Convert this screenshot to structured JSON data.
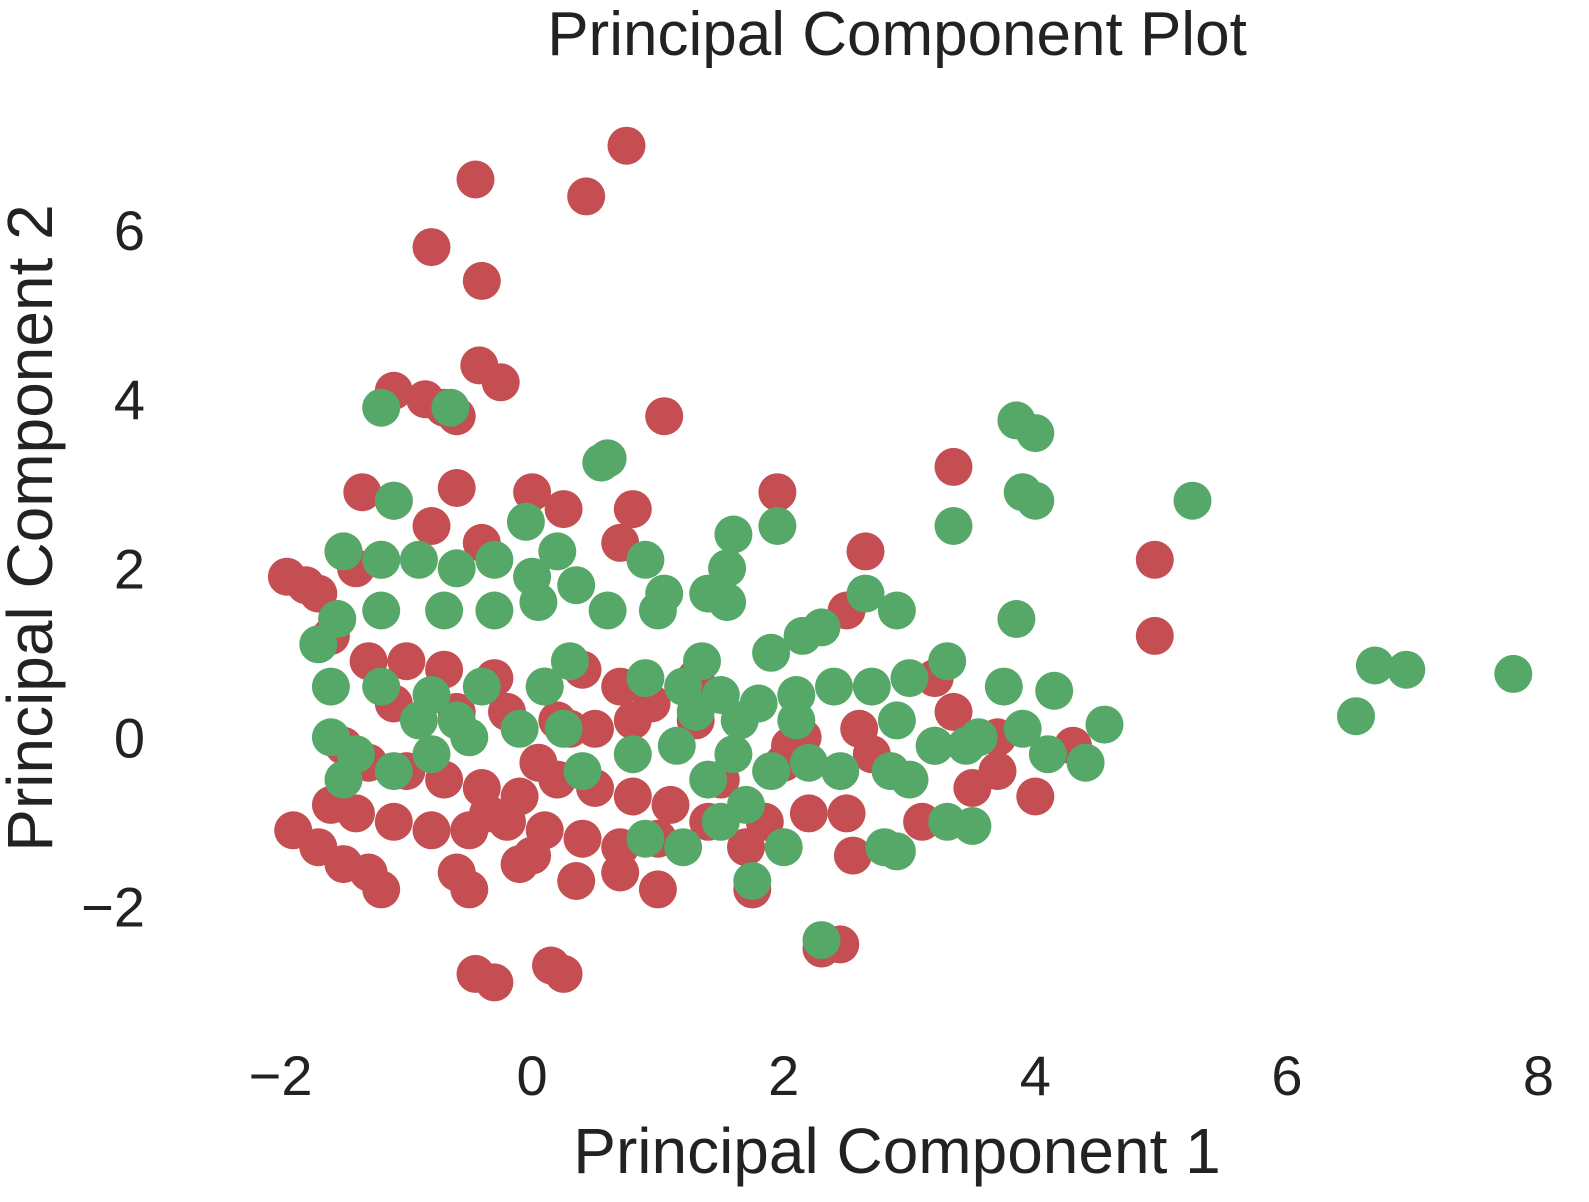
{
  "chart_data": {
    "type": "scatter",
    "title": "Principal Component Plot",
    "xlabel": "Principal Component 1",
    "ylabel": "Principal Component 2",
    "xlim": [
      -2.1,
      8.1
    ],
    "ylim": [
      -3.7,
      7.6
    ],
    "xticks": [
      -2,
      0,
      2,
      4,
      6,
      8
    ],
    "yticks": [
      -2,
      0,
      2,
      4,
      6
    ],
    "xtick_labels": [
      "−2",
      "0",
      "2",
      "4",
      "6",
      "8"
    ],
    "ytick_labels": [
      "−2",
      "0",
      "2",
      "4",
      "6"
    ],
    "grid": false,
    "legend": "none",
    "series": [
      {
        "color": "#c44e52",
        "points": [
          [
            0.75,
            7.0
          ],
          [
            -0.45,
            6.6
          ],
          [
            0.43,
            6.4
          ],
          [
            -0.8,
            5.8
          ],
          [
            -0.4,
            5.4
          ],
          [
            -0.42,
            4.4
          ],
          [
            -0.25,
            4.2
          ],
          [
            1.05,
            3.8
          ],
          [
            -1.1,
            4.1
          ],
          [
            -0.85,
            4.0
          ],
          [
            -0.7,
            3.9
          ],
          [
            -0.6,
            3.8
          ],
          [
            0.6,
            3.3
          ],
          [
            -1.35,
            2.9
          ],
          [
            -1.1,
            2.8
          ],
          [
            -0.6,
            2.95
          ],
          [
            0.0,
            2.9
          ],
          [
            0.25,
            2.7
          ],
          [
            0.8,
            2.7
          ],
          [
            -0.8,
            2.5
          ],
          [
            0.7,
            2.3
          ],
          [
            -1.5,
            2.2
          ],
          [
            -1.4,
            2.0
          ],
          [
            -1.2,
            2.1
          ],
          [
            -0.4,
            2.3
          ],
          [
            -1.95,
            1.9
          ],
          [
            -1.8,
            1.8
          ],
          [
            -1.7,
            1.7
          ],
          [
            -1.55,
            1.4
          ],
          [
            -1.6,
            1.2
          ],
          [
            -1.3,
            0.9
          ],
          [
            -1.0,
            0.9
          ],
          [
            -0.7,
            0.8
          ],
          [
            -0.3,
            0.7
          ],
          [
            0.1,
            0.6
          ],
          [
            0.4,
            0.8
          ],
          [
            0.7,
            0.6
          ],
          [
            0.95,
            0.4
          ],
          [
            1.3,
            0.2
          ],
          [
            -1.1,
            0.4
          ],
          [
            -0.6,
            0.3
          ],
          [
            -0.2,
            0.3
          ],
          [
            0.2,
            0.2
          ],
          [
            0.5,
            0.1
          ],
          [
            0.8,
            0.2
          ],
          [
            -1.5,
            -0.1
          ],
          [
            -1.3,
            -0.3
          ],
          [
            -1.0,
            -0.4
          ],
          [
            -0.7,
            -0.5
          ],
          [
            -0.4,
            -0.6
          ],
          [
            -0.1,
            -0.7
          ],
          [
            0.2,
            -0.5
          ],
          [
            0.5,
            -0.6
          ],
          [
            0.8,
            -0.7
          ],
          [
            1.1,
            -0.8
          ],
          [
            -1.6,
            -0.8
          ],
          [
            -1.4,
            -0.9
          ],
          [
            -1.1,
            -1.0
          ],
          [
            -0.8,
            -1.1
          ],
          [
            -0.5,
            -1.1
          ],
          [
            -0.2,
            -1.0
          ],
          [
            0.1,
            -1.1
          ],
          [
            0.4,
            -1.2
          ],
          [
            0.7,
            -1.3
          ],
          [
            1.0,
            -1.2
          ],
          [
            -1.9,
            -1.1
          ],
          [
            -1.7,
            -1.3
          ],
          [
            -1.5,
            -1.5
          ],
          [
            -1.3,
            -1.6
          ],
          [
            -1.2,
            -1.8
          ],
          [
            -0.6,
            -1.6
          ],
          [
            -0.5,
            -1.8
          ],
          [
            -0.1,
            -1.5
          ],
          [
            0.0,
            -1.4
          ],
          [
            0.35,
            -1.7
          ],
          [
            0.7,
            -1.6
          ],
          [
            1.0,
            -1.8
          ],
          [
            -0.45,
            -2.8
          ],
          [
            -0.3,
            -2.9
          ],
          [
            0.15,
            -2.7
          ],
          [
            0.25,
            -2.8
          ],
          [
            1.4,
            -1.0
          ],
          [
            1.7,
            -1.3
          ],
          [
            1.85,
            -1.0
          ],
          [
            1.75,
            -1.8
          ],
          [
            1.5,
            -0.5
          ],
          [
            2.0,
            -0.3
          ],
          [
            2.2,
            -0.9
          ],
          [
            2.5,
            -0.9
          ],
          [
            2.55,
            -1.4
          ],
          [
            2.3,
            -2.5
          ],
          [
            2.45,
            -2.45
          ],
          [
            2.05,
            -0.1
          ],
          [
            2.15,
            0.0
          ],
          [
            2.6,
            0.1
          ],
          [
            2.7,
            -0.2
          ],
          [
            3.1,
            -1.0
          ],
          [
            3.2,
            -0.1
          ],
          [
            3.35,
            0.3
          ],
          [
            3.5,
            -0.6
          ],
          [
            3.7,
            0.0
          ],
          [
            3.7,
            -0.4
          ],
          [
            4.0,
            -0.7
          ],
          [
            4.3,
            -0.1
          ],
          [
            3.2,
            0.7
          ],
          [
            2.5,
            1.5
          ],
          [
            2.65,
            2.2
          ],
          [
            1.95,
            2.9
          ],
          [
            3.35,
            3.2
          ],
          [
            4.95,
            2.1
          ],
          [
            4.95,
            1.2
          ],
          [
            1.3,
            0.7
          ],
          [
            0.3,
            0.1
          ],
          [
            -0.35,
            -0.9
          ],
          [
            0.05,
            -0.3
          ]
        ]
      },
      {
        "color": "#55a868",
        "points": [
          [
            7.8,
            0.75
          ],
          [
            6.95,
            0.8
          ],
          [
            6.7,
            0.85
          ],
          [
            6.55,
            0.25
          ],
          [
            5.25,
            2.8
          ],
          [
            3.85,
            3.75
          ],
          [
            4.0,
            3.6
          ],
          [
            3.9,
            2.9
          ],
          [
            4.0,
            2.8
          ],
          [
            3.35,
            2.5
          ],
          [
            3.85,
            1.4
          ],
          [
            4.15,
            0.55
          ],
          [
            4.55,
            0.15
          ],
          [
            4.4,
            -0.3
          ],
          [
            4.1,
            -0.2
          ],
          [
            3.75,
            0.6
          ],
          [
            3.3,
            0.9
          ],
          [
            3.0,
            0.7
          ],
          [
            2.7,
            0.6
          ],
          [
            2.4,
            0.6
          ],
          [
            2.1,
            0.5
          ],
          [
            1.8,
            0.4
          ],
          [
            1.5,
            0.5
          ],
          [
            1.2,
            0.6
          ],
          [
            0.9,
            0.7
          ],
          [
            1.9,
            1.0
          ],
          [
            2.15,
            1.2
          ],
          [
            2.3,
            1.3
          ],
          [
            2.9,
            1.5
          ],
          [
            2.65,
            1.7
          ],
          [
            1.55,
            1.6
          ],
          [
            1.55,
            2.0
          ],
          [
            1.6,
            2.4
          ],
          [
            1.4,
            1.7
          ],
          [
            1.0,
            1.5
          ],
          [
            0.9,
            2.1
          ],
          [
            1.05,
            1.7
          ],
          [
            1.95,
            2.5
          ],
          [
            -1.2,
            3.9
          ],
          [
            -0.65,
            3.9
          ],
          [
            0.6,
            3.3
          ],
          [
            0.55,
            3.25
          ],
          [
            -1.1,
            2.8
          ],
          [
            -0.05,
            2.55
          ],
          [
            0.2,
            2.2
          ],
          [
            -1.5,
            2.2
          ],
          [
            -1.2,
            2.1
          ],
          [
            -0.9,
            2.1
          ],
          [
            -0.6,
            2.0
          ],
          [
            -0.3,
            2.1
          ],
          [
            0.0,
            1.9
          ],
          [
            0.35,
            1.8
          ],
          [
            0.6,
            1.5
          ],
          [
            -1.2,
            1.5
          ],
          [
            -0.7,
            1.5
          ],
          [
            -0.3,
            1.5
          ],
          [
            0.05,
            1.6
          ],
          [
            -1.55,
            1.4
          ],
          [
            -1.7,
            1.1
          ],
          [
            -1.6,
            0.6
          ],
          [
            -1.2,
            0.6
          ],
          [
            -0.8,
            0.5
          ],
          [
            -0.4,
            0.6
          ],
          [
            0.1,
            0.6
          ],
          [
            0.3,
            0.9
          ],
          [
            -0.6,
            0.2
          ],
          [
            -0.5,
            0.0
          ],
          [
            -0.9,
            0.2
          ],
          [
            -0.1,
            0.1
          ],
          [
            0.25,
            0.1
          ],
          [
            -1.6,
            0.0
          ],
          [
            -1.4,
            -0.2
          ],
          [
            -1.5,
            -0.5
          ],
          [
            -1.1,
            -0.4
          ],
          [
            -0.8,
            -0.2
          ],
          [
            0.4,
            -0.4
          ],
          [
            0.8,
            -0.2
          ],
          [
            1.15,
            -0.1
          ],
          [
            1.4,
            -0.5
          ],
          [
            1.6,
            -0.2
          ],
          [
            1.9,
            -0.4
          ],
          [
            2.2,
            -0.3
          ],
          [
            2.45,
            -0.4
          ],
          [
            2.85,
            -0.4
          ],
          [
            3.0,
            -0.5
          ],
          [
            3.2,
            -0.1
          ],
          [
            3.45,
            -0.1
          ],
          [
            3.55,
            0.0
          ],
          [
            3.3,
            -1.0
          ],
          [
            3.5,
            -1.05
          ],
          [
            2.8,
            -1.3
          ],
          [
            2.9,
            -1.35
          ],
          [
            2.0,
            -1.3
          ],
          [
            1.75,
            -1.7
          ],
          [
            2.3,
            -2.4
          ],
          [
            0.9,
            -1.2
          ],
          [
            1.2,
            -1.3
          ],
          [
            1.5,
            -1.0
          ],
          [
            1.7,
            -0.8
          ],
          [
            2.1,
            0.2
          ],
          [
            2.9,
            0.2
          ],
          [
            1.35,
            0.9
          ],
          [
            1.65,
            0.2
          ],
          [
            1.3,
            0.3
          ],
          [
            3.9,
            0.1
          ]
        ]
      }
    ]
  }
}
